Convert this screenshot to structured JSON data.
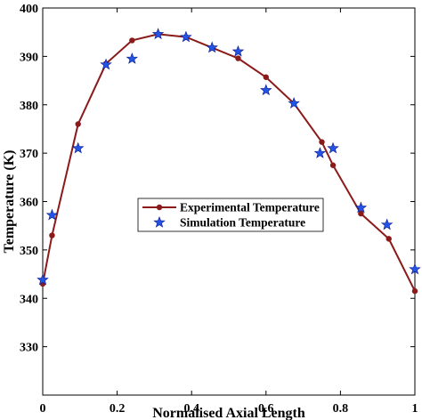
{
  "chart_data": {
    "type": "line",
    "xlabel": "Normalised Axial Length",
    "ylabel": "Temperature (K)",
    "xlim": [
      0,
      1
    ],
    "ylim": [
      320,
      400
    ],
    "x_ticks": [
      0,
      0.2,
      0.4,
      0.6,
      0.8,
      1
    ],
    "x_tick_labels": [
      "0",
      "0.2",
      "0.4",
      "0.6",
      "0.8",
      "1"
    ],
    "y_ticks": [
      330,
      340,
      350,
      360,
      370,
      380,
      390,
      400
    ],
    "y_tick_labels": [
      "330",
      "340",
      "350",
      "360",
      "370",
      "380",
      "390",
      "400"
    ],
    "grid": false,
    "legend_position": "center",
    "series": [
      {
        "name": "Experimental Temperature",
        "style": "line-with-circle-markers",
        "color": "#8B1A1A",
        "x": [
          0,
          0.025,
          0.095,
          0.17,
          0.24,
          0.31,
          0.385,
          0.455,
          0.525,
          0.6,
          0.675,
          0.75,
          0.78,
          0.855,
          0.93,
          1.0
        ],
        "y": [
          343.0,
          353.0,
          376.0,
          388.5,
          393.3,
          394.6,
          394.0,
          391.8,
          389.6,
          385.7,
          380.3,
          372.3,
          367.5,
          357.5,
          352.3,
          341.5
        ]
      },
      {
        "name": "Simulation Temperature",
        "style": "star-markers",
        "color": "#2454E6",
        "x": [
          0,
          0.025,
          0.095,
          0.17,
          0.24,
          0.31,
          0.385,
          0.455,
          0.525,
          0.6,
          0.675,
          0.745,
          0.78,
          0.855,
          0.925,
          1.0
        ],
        "y": [
          343.8,
          357.2,
          371.0,
          388.3,
          389.5,
          394.6,
          394.0,
          391.8,
          391.0,
          383.0,
          380.3,
          370.0,
          371.0,
          358.7,
          355.2,
          346.0
        ]
      }
    ]
  }
}
